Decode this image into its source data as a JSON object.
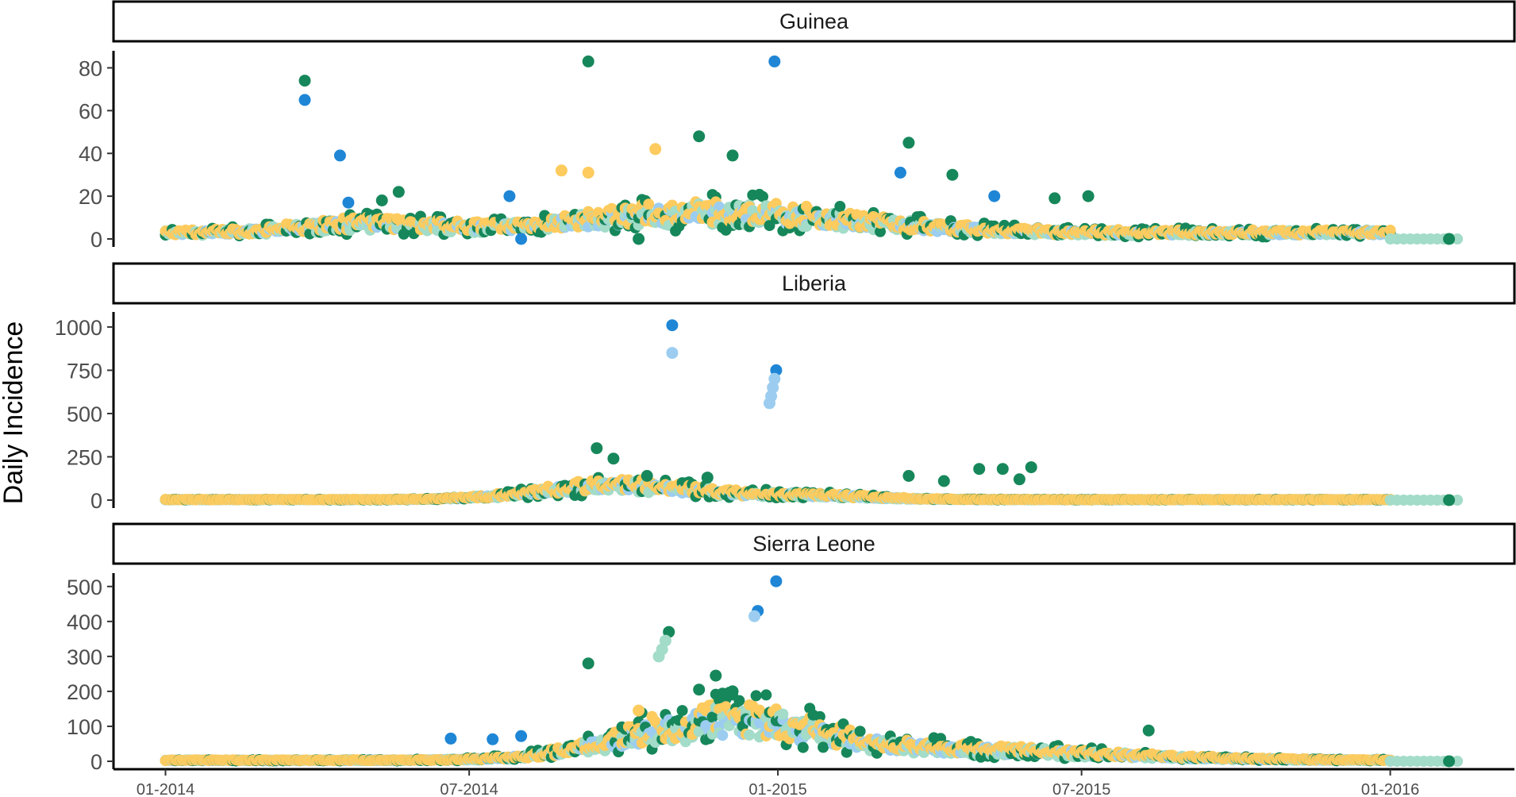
{
  "chart_data": {
    "type": "scatter",
    "ylabel": "Daily Incidence",
    "xlabel": "",
    "x_range": [
      "2013-12-01",
      "2016-03-15"
    ],
    "x_ticks": [
      "01-2014",
      "07-2014",
      "01-2015",
      "07-2015",
      "01-2016"
    ],
    "x_tick_dates": [
      "2014-01-01",
      "2014-07-01",
      "2015-01-01",
      "2015-07-01",
      "2016-01-01"
    ],
    "legend": "none",
    "grid": false,
    "series_colors": {
      "blue_light": "#9ccdf0",
      "blue_dark": "#1f86d6",
      "green_light": "#a3dcc8",
      "green_dark": "#16875a",
      "yellow": "#fdcb5e"
    },
    "panels": [
      {
        "title": "Guinea",
        "ylim": [
          0,
          85
        ],
        "yticks": [
          0,
          20,
          40,
          60,
          80
        ],
        "highlights": [
          {
            "x": "2014-03-25",
            "y": 74,
            "color": "green_dark"
          },
          {
            "x": "2014-03-25",
            "y": 65,
            "color": "blue_dark"
          },
          {
            "x": "2014-04-15",
            "y": 39,
            "color": "blue_dark"
          },
          {
            "x": "2014-04-20",
            "y": 17,
            "color": "blue_dark"
          },
          {
            "x": "2014-09-10",
            "y": 83,
            "color": "green_dark"
          },
          {
            "x": "2014-12-30",
            "y": 83,
            "color": "blue_dark"
          },
          {
            "x": "2014-11-15",
            "y": 48,
            "color": "green_dark"
          },
          {
            "x": "2014-10-20",
            "y": 42,
            "color": "yellow"
          },
          {
            "x": "2014-12-05",
            "y": 39,
            "color": "green_dark"
          },
          {
            "x": "2015-03-20",
            "y": 45,
            "color": "green_dark"
          },
          {
            "x": "2015-03-15",
            "y": 31,
            "color": "blue_dark"
          },
          {
            "x": "2015-04-15",
            "y": 30,
            "color": "green_dark"
          },
          {
            "x": "2015-05-10",
            "y": 20,
            "color": "blue_dark"
          },
          {
            "x": "2015-06-15",
            "y": 19,
            "color": "green_dark"
          },
          {
            "x": "2015-07-05",
            "y": 20,
            "color": "green_dark"
          },
          {
            "x": "2014-05-10",
            "y": 18,
            "color": "green_dark"
          },
          {
            "x": "2014-05-20",
            "y": 22,
            "color": "green_dark"
          },
          {
            "x": "2014-07-25",
            "y": 20,
            "color": "blue_dark"
          },
          {
            "x": "2014-08-25",
            "y": 32,
            "color": "yellow"
          },
          {
            "x": "2014-09-10",
            "y": 31,
            "color": "yellow"
          },
          {
            "x": "2014-10-10",
            "y": 0,
            "color": "green_dark"
          },
          {
            "x": "2014-08-01",
            "y": 0,
            "color": "blue_dark"
          },
          {
            "x": "2016-02-05",
            "y": 0,
            "color": "green_dark"
          }
        ]
      },
      {
        "title": "Liberia",
        "ylim": [
          0,
          1050
        ],
        "yticks": [
          0,
          250,
          500,
          750,
          1000
        ],
        "highlights": [
          {
            "x": "2014-10-30",
            "y": 1010,
            "color": "blue_dark"
          },
          {
            "x": "2014-10-30",
            "y": 850,
            "color": "blue_light"
          },
          {
            "x": "2014-12-31",
            "y": 750,
            "color": "blue_dark"
          },
          {
            "x": "2014-12-30",
            "y": 700,
            "color": "blue_light"
          },
          {
            "x": "2014-12-29",
            "y": 650,
            "color": "blue_light"
          },
          {
            "x": "2014-12-28",
            "y": 600,
            "color": "blue_light"
          },
          {
            "x": "2014-12-27",
            "y": 560,
            "color": "blue_light"
          },
          {
            "x": "2014-09-15",
            "y": 300,
            "color": "green_dark"
          },
          {
            "x": "2014-09-25",
            "y": 240,
            "color": "green_dark"
          },
          {
            "x": "2014-10-15",
            "y": 140,
            "color": "green_dark"
          },
          {
            "x": "2014-11-20",
            "y": 130,
            "color": "green_dark"
          },
          {
            "x": "2015-03-20",
            "y": 140,
            "color": "green_dark"
          },
          {
            "x": "2015-04-10",
            "y": 110,
            "color": "green_dark"
          },
          {
            "x": "2015-05-01",
            "y": 180,
            "color": "green_dark"
          },
          {
            "x": "2015-05-15",
            "y": 180,
            "color": "green_dark"
          },
          {
            "x": "2015-05-25",
            "y": 120,
            "color": "green_dark"
          },
          {
            "x": "2015-06-01",
            "y": 190,
            "color": "green_dark"
          },
          {
            "x": "2016-02-05",
            "y": 0,
            "color": "green_dark"
          }
        ]
      },
      {
        "title": "Sierra Leone",
        "ylim": [
          0,
          520
        ],
        "yticks": [
          0,
          100,
          200,
          300,
          400,
          500
        ],
        "highlights": [
          {
            "x": "2014-12-31",
            "y": 515,
            "color": "blue_dark"
          },
          {
            "x": "2014-12-20",
            "y": 430,
            "color": "blue_dark"
          },
          {
            "x": "2014-12-18",
            "y": 415,
            "color": "blue_light"
          },
          {
            "x": "2014-10-28",
            "y": 370,
            "color": "green_dark"
          },
          {
            "x": "2014-10-26",
            "y": 345,
            "color": "green_light"
          },
          {
            "x": "2014-10-24",
            "y": 320,
            "color": "green_light"
          },
          {
            "x": "2014-10-22",
            "y": 300,
            "color": "green_light"
          },
          {
            "x": "2014-09-10",
            "y": 280,
            "color": "green_dark"
          },
          {
            "x": "2014-11-25",
            "y": 245,
            "color": "green_dark"
          },
          {
            "x": "2014-11-15",
            "y": 205,
            "color": "green_dark"
          },
          {
            "x": "2014-12-05",
            "y": 200,
            "color": "green_dark"
          },
          {
            "x": "2015-08-10",
            "y": 88,
            "color": "green_dark"
          },
          {
            "x": "2014-06-20",
            "y": 65,
            "color": "blue_dark"
          },
          {
            "x": "2014-07-15",
            "y": 63,
            "color": "blue_dark"
          },
          {
            "x": "2014-08-01",
            "y": 72,
            "color": "blue_dark"
          },
          {
            "x": "2014-10-10",
            "y": 145,
            "color": "yellow"
          },
          {
            "x": "2016-02-05",
            "y": 0,
            "color": "green_dark"
          }
        ]
      }
    ]
  }
}
